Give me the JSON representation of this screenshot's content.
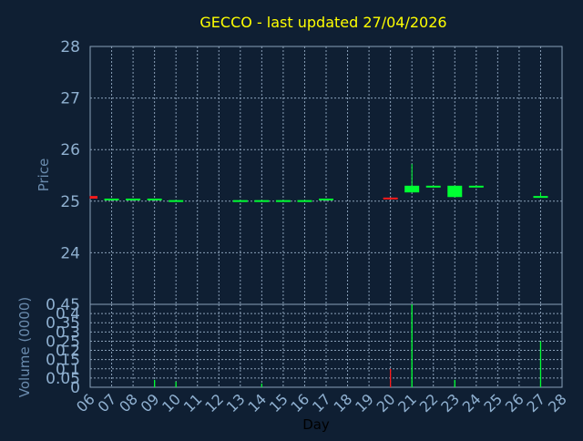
{
  "colors": {
    "background": "#0f1f33",
    "title": "#ffff00",
    "axis_text": "#8fb0d0",
    "axis_label": "#6a8bad",
    "day_label": "#000000",
    "grid": "#8aa0b8",
    "up": "#00ff33",
    "down": "#ff1a1a"
  },
  "chart_data": [
    {
      "type": "candlestick",
      "title": "GECCO - last updated 27/04/2026",
      "ylabel": "Price",
      "ylim": [
        23.0,
        28.0
      ],
      "yticks": [
        24,
        25,
        26,
        27,
        28
      ],
      "grid": true,
      "x_days": [
        "06",
        "07",
        "08",
        "09",
        "10",
        "11",
        "12",
        "13",
        "14",
        "15",
        "16",
        "17",
        "18",
        "19",
        "20",
        "21",
        "22",
        "23",
        "24",
        "25",
        "26",
        "27",
        "28"
      ],
      "candles": [
        {
          "day": "06",
          "open": 25.1,
          "high": 25.1,
          "low": 25.05,
          "close": 25.05
        },
        {
          "day": "07",
          "open": 25.05,
          "high": 25.05,
          "low": 25.05,
          "close": 25.05
        },
        {
          "day": "08",
          "open": 25.05,
          "high": 25.05,
          "low": 25.05,
          "close": 25.05
        },
        {
          "day": "09",
          "open": 25.05,
          "high": 25.05,
          "low": 25.05,
          "close": 25.05
        },
        {
          "day": "10",
          "open": 25.02,
          "high": 25.02,
          "low": 25.02,
          "close": 25.02
        },
        {
          "day": "13",
          "open": 25.02,
          "high": 25.02,
          "low": 25.02,
          "close": 25.02
        },
        {
          "day": "14",
          "open": 25.02,
          "high": 25.02,
          "low": 25.02,
          "close": 25.02
        },
        {
          "day": "15",
          "open": 25.02,
          "high": 25.02,
          "low": 25.02,
          "close": 25.02
        },
        {
          "day": "16",
          "open": 25.02,
          "high": 25.02,
          "low": 25.02,
          "close": 25.02
        },
        {
          "day": "17",
          "open": 25.02,
          "high": 25.05,
          "low": 25.02,
          "close": 25.05
        },
        {
          "day": "20",
          "open": 25.07,
          "high": 25.07,
          "low": 25.04,
          "close": 25.04
        },
        {
          "day": "21",
          "open": 25.17,
          "high": 25.72,
          "low": 25.17,
          "close": 25.3
        },
        {
          "day": "22",
          "open": 25.3,
          "high": 25.3,
          "low": 25.3,
          "close": 25.3
        },
        {
          "day": "23",
          "open": 25.08,
          "high": 25.3,
          "low": 25.08,
          "close": 25.3
        },
        {
          "day": "24",
          "open": 25.3,
          "high": 25.3,
          "low": 25.3,
          "close": 25.3
        },
        {
          "day": "27",
          "open": 25.07,
          "high": 25.17,
          "low": 25.07,
          "close": 25.1
        }
      ]
    },
    {
      "type": "bar",
      "ylabel": "Volume (0000)",
      "xlabel": "Day",
      "ylim": [
        0,
        0.45
      ],
      "yticks": [
        0,
        0.05,
        0.1,
        0.15,
        0.2,
        0.25,
        0.3,
        0.35,
        0.4,
        0.45
      ],
      "ytick_labels": [
        "0",
        "0.05",
        "0.1",
        "0.15",
        "0.2",
        "0.25",
        "0.3",
        "0.35",
        "0.4",
        "0.45"
      ],
      "grid": true,
      "x_days": [
        "06",
        "07",
        "08",
        "09",
        "10",
        "11",
        "12",
        "13",
        "14",
        "15",
        "16",
        "17",
        "18",
        "19",
        "20",
        "21",
        "22",
        "23",
        "24",
        "25",
        "26",
        "27",
        "28"
      ],
      "bars": [
        {
          "day": "09",
          "value": 0.04,
          "dir": "up"
        },
        {
          "day": "10",
          "value": 0.03,
          "dir": "up"
        },
        {
          "day": "14",
          "value": 0.02,
          "dir": "up"
        },
        {
          "day": "20",
          "value": 0.1,
          "dir": "down"
        },
        {
          "day": "21",
          "value": 0.45,
          "dir": "up"
        },
        {
          "day": "23",
          "value": 0.04,
          "dir": "up"
        },
        {
          "day": "27",
          "value": 0.25,
          "dir": "up"
        }
      ]
    }
  ]
}
